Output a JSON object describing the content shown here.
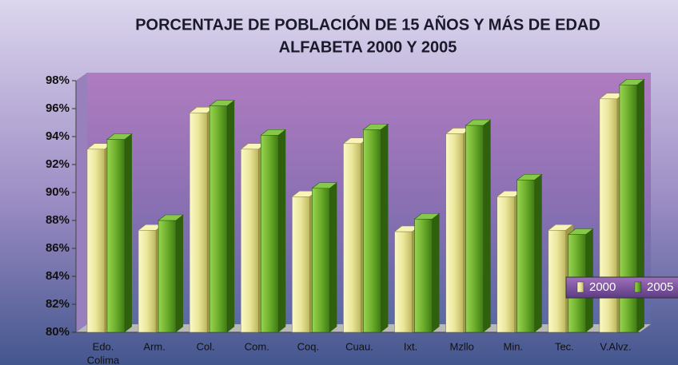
{
  "chart_data": {
    "type": "bar3d",
    "title": [
      "PORCENTAJE DE POBLACIÓN DE 15 AÑOS Y MÁS DE EDAD",
      "ALFABETA 2000 Y 2005"
    ],
    "categories": [
      [
        "Edo.",
        "Colima"
      ],
      [
        "Arm."
      ],
      [
        "Col."
      ],
      [
        "Com."
      ],
      [
        "Coq."
      ],
      [
        "Cuau."
      ],
      [
        "Ixt."
      ],
      [
        "Mzllo"
      ],
      [
        "Min."
      ],
      [
        "Tec."
      ],
      [
        "V.Alvz."
      ]
    ],
    "series": [
      {
        "name": "2000",
        "color": "#e8e490",
        "values": [
          93.1,
          87.3,
          95.7,
          93.1,
          89.7,
          93.5,
          87.2,
          94.2,
          89.7,
          87.3,
          96.7
        ]
      },
      {
        "name": "2005",
        "color": "#6cae2c",
        "values": [
          93.8,
          88.0,
          96.2,
          94.1,
          90.3,
          94.5,
          88.1,
          94.8,
          90.9,
          87.0,
          97.7
        ]
      }
    ],
    "ylim": [
      80,
      98
    ],
    "yticks": [
      {
        "value": 80,
        "label": "80%"
      },
      {
        "value": 82,
        "label": "82%"
      },
      {
        "value": 84,
        "label": "84%"
      },
      {
        "value": 86,
        "label": "86%"
      },
      {
        "value": 88,
        "label": "88%"
      },
      {
        "value": 90,
        "label": "90%"
      },
      {
        "value": 92,
        "label": "92%"
      },
      {
        "value": 94,
        "label": "94%"
      },
      {
        "value": 96,
        "label": "96%"
      },
      {
        "value": 98,
        "label": "98%"
      }
    ],
    "legend": "right"
  }
}
